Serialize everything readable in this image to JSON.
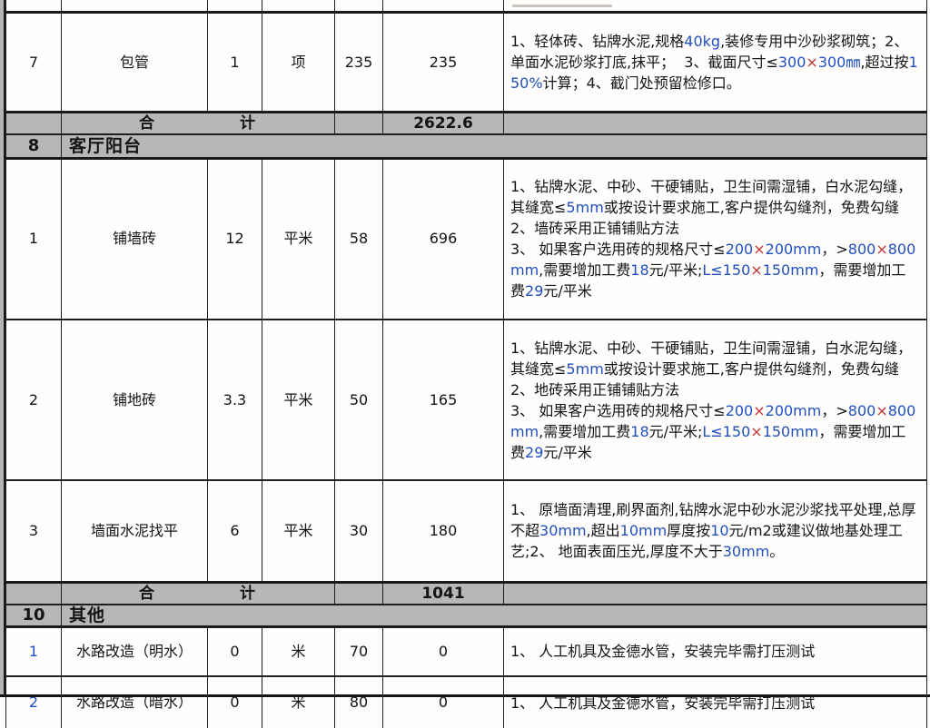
{
  "colors": {
    "grid": "#1f1f1f",
    "grey_band": "#b7b7b7",
    "number_blue": "#2050c0",
    "times_red": "#c03333",
    "row_number_blue": "#2050c0"
  },
  "table": {
    "blocks": [
      {
        "type": "partial"
      },
      {
        "type": "item",
        "no": "7",
        "name": "包管",
        "qty": "1",
        "unit": "项",
        "price": "235",
        "amount": "235",
        "remark": [
          "1、轻体砖、钻牌水泥,规格",
          {
            "t": "40kg",
            "c": "num"
          },
          ",装修专用中沙砂浆砌筑；2、单面水泥砂浆打底,抹平；  3、截面尺寸≤",
          {
            "t": "300",
            "c": "num"
          },
          {
            "t": "×",
            "c": "x"
          },
          {
            "t": "300㎜",
            "c": "num"
          },
          ",超过按",
          {
            "t": "150%",
            "c": "num"
          },
          "计算；4、截门处预留检修口。"
        ]
      },
      {
        "type": "total",
        "label": "合 计",
        "amount": "2622.6"
      },
      {
        "type": "section",
        "no": "8",
        "title": "客厅阳台"
      },
      {
        "type": "item",
        "no": "1",
        "name": "铺墙砖",
        "qty": "12",
        "unit": "平米",
        "price": "58",
        "amount": "696",
        "remark": [
          "1、钻牌水泥、中砂、干硬铺贴，卫生间需湿铺，白水泥勾缝，其缝宽≤",
          {
            "t": "5mm",
            "c": "num"
          },
          "或按设计要求施工,客户提供勾缝剂，免费勾缝\n2、墙砖采用正铺铺贴方法\n3、 如果客户选用砖的规格尺寸≤",
          {
            "t": "200",
            "c": "num"
          },
          {
            "t": "×",
            "c": "x"
          },
          {
            "t": "200mm",
            "c": "num"
          },
          "，>",
          {
            "t": "800",
            "c": "num"
          },
          {
            "t": "×",
            "c": "x"
          },
          {
            "t": "800mm",
            "c": "num"
          },
          ",需要增加工费",
          {
            "t": "18",
            "c": "num"
          },
          "元/平米;",
          {
            "t": "L≤150",
            "c": "num"
          },
          {
            "t": "×",
            "c": "x"
          },
          {
            "t": "150mm",
            "c": "num"
          },
          "，需要增加工费",
          {
            "t": "29",
            "c": "num"
          },
          "元/平米"
        ]
      },
      {
        "type": "item",
        "no": "2",
        "name": "铺地砖",
        "qty": "3.3",
        "unit": "平米",
        "price": "50",
        "amount": "165",
        "remark": [
          "1、钻牌水泥、中砂、干硬铺贴，卫生间需湿铺，白水泥勾缝，其缝宽≤",
          {
            "t": "5mm",
            "c": "num"
          },
          "或按设计要求施工,客户提供勾缝剂，免费勾缝\n2、地砖采用正铺铺贴方法\n3、 如果客户选用砖的规格尺寸≤",
          {
            "t": "200",
            "c": "num"
          },
          {
            "t": "×",
            "c": "x"
          },
          {
            "t": "200mm",
            "c": "num"
          },
          "，>",
          {
            "t": "800",
            "c": "num"
          },
          {
            "t": "×",
            "c": "x"
          },
          {
            "t": "800mm",
            "c": "num"
          },
          ",需要增加工费",
          {
            "t": "18",
            "c": "num"
          },
          "元/平米;",
          {
            "t": "L≤150",
            "c": "num"
          },
          {
            "t": "×",
            "c": "x"
          },
          {
            "t": "150mm",
            "c": "num"
          },
          "，需要增加工费",
          {
            "t": "29",
            "c": "num"
          },
          "元/平米"
        ]
      },
      {
        "type": "item",
        "no": "3",
        "name": "墙面水泥找平",
        "qty": "6",
        "unit": "平米",
        "price": "30",
        "amount": "180",
        "remark": [
          "1、 原墙面清理,刷界面剂,钻牌水泥中砂水泥沙浆找平处理,总厚不超",
          {
            "t": "30mm",
            "c": "num"
          },
          ",超出",
          {
            "t": "10mm",
            "c": "num"
          },
          "厚度按",
          {
            "t": "10",
            "c": "num"
          },
          "元/m2或建议做地基处理工艺;2、 地面表面压光,厚度不大于",
          {
            "t": "30mm",
            "c": "num"
          },
          "。"
        ]
      },
      {
        "type": "total",
        "label": "合 计",
        "amount": "1041"
      },
      {
        "type": "section",
        "no": "10",
        "title": "其他"
      },
      {
        "type": "item",
        "no": "1",
        "no_blue": true,
        "name": "水路改造（明水）",
        "qty": "0",
        "unit": "米",
        "price": "70",
        "amount": "0",
        "remark": [
          "1、 人工机具及金德水管，安装完毕需打压测试"
        ]
      },
      {
        "type": "item",
        "no": "2",
        "no_blue": true,
        "name": "水路改造（暗水）",
        "qty": "0",
        "unit": "米",
        "price": "80",
        "amount": "0",
        "remark": [
          "1、 人工机具及金德水管，安装完毕需打压测试"
        ]
      }
    ]
  }
}
